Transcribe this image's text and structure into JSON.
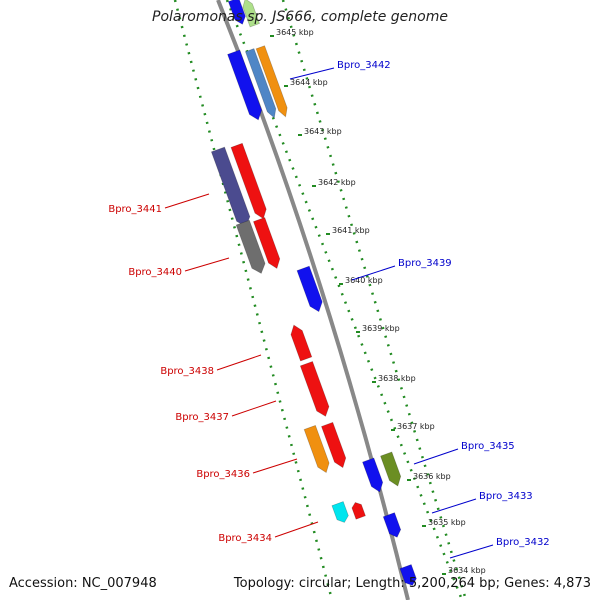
{
  "title": "Polaromonas sp. JS666, complete genome",
  "footer": {
    "accession": "Accession: NC_007948",
    "topology": "Topology: circular; Length: 5,200,264 bp; Genes: 4,873"
  },
  "colors": {
    "forward_label": "#0000cc",
    "reverse_label": "#cc0000",
    "backbone": "#888888",
    "tick_dots": "#228b22"
  },
  "position_labels": [
    "3645 kbp",
    "3644 kbp",
    "3643 kbp",
    "3642 kbp",
    "3641 kbp",
    "3640 kbp",
    "3639 kbp",
    "3638 kbp",
    "3637 kbp",
    "3636 kbp",
    "3635 kbp",
    "3634 kbp"
  ],
  "forward_gene_labels": [
    "Bpro_3442",
    "Bpro_3439",
    "Bpro_3435",
    "Bpro_3433",
    "Bpro_3432"
  ],
  "reverse_gene_labels": [
    "Bpro_3441",
    "Bpro_3440",
    "Bpro_3438",
    "Bpro_3437",
    "Bpro_3436",
    "Bpro_3434"
  ],
  "gene_colors": {
    "blue": "#1111ee",
    "steel": "#4f86c6",
    "orange": "#f09010",
    "red": "#ee1111",
    "slate": "#4b4b8f",
    "gray": "#6e6e6e",
    "olive": "#6b8e23",
    "cyan": "#00e5ee",
    "lightgreen": "#aee08a"
  }
}
